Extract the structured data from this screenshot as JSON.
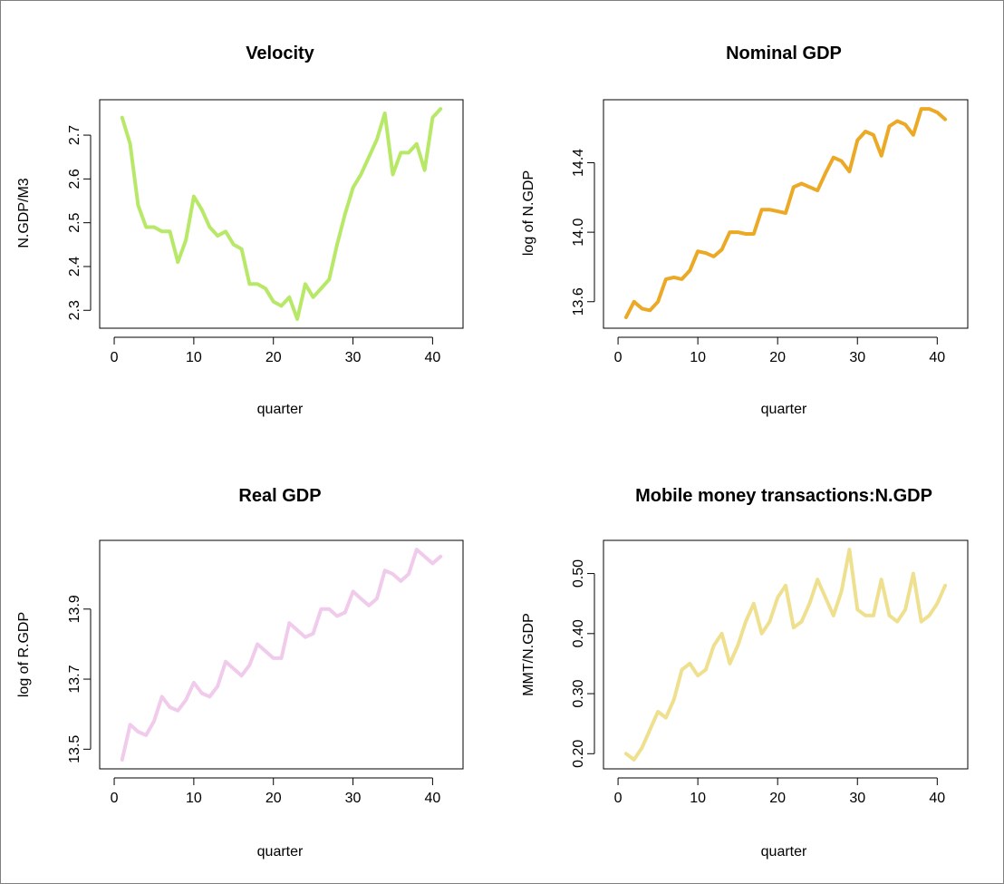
{
  "chart_data": [
    {
      "type": "line",
      "title": "Velocity",
      "xlabel": "quarter",
      "ylabel": "N.GDP/M3",
      "color": "#b7e868",
      "xlim": [
        0,
        42
      ],
      "ylim": [
        2.28,
        2.76
      ],
      "xticks": [
        0,
        10,
        20,
        30,
        40
      ],
      "yticks": [
        2.3,
        2.4,
        2.5,
        2.6,
        2.7
      ],
      "ytick_labels": [
        "2.3",
        "2.4",
        "2.5",
        "2.6",
        "2.7"
      ],
      "x": [
        1,
        2,
        3,
        4,
        5,
        6,
        7,
        8,
        9,
        10,
        11,
        12,
        13,
        14,
        15,
        16,
        17,
        18,
        19,
        20,
        21,
        22,
        23,
        24,
        25,
        26,
        27,
        28,
        29,
        30,
        31,
        32,
        33,
        34,
        35,
        36,
        37,
        38,
        39,
        40,
        41
      ],
      "y": [
        2.74,
        2.68,
        2.54,
        2.49,
        2.49,
        2.48,
        2.48,
        2.41,
        2.46,
        2.56,
        2.53,
        2.49,
        2.47,
        2.48,
        2.45,
        2.44,
        2.36,
        2.36,
        2.35,
        2.32,
        2.31,
        2.33,
        2.28,
        2.36,
        2.33,
        2.35,
        2.37,
        2.45,
        2.52,
        2.58,
        2.61,
        2.65,
        2.69,
        2.75,
        2.61,
        2.66,
        2.66,
        2.68,
        2.62,
        2.74,
        2.76
      ]
    },
    {
      "type": "line",
      "title": "Nominal GDP",
      "xlabel": "quarter",
      "ylabel": "log of N.GDP",
      "color": "#eba926",
      "xlim": [
        0,
        42
      ],
      "ylim": [
        13.5,
        14.71
      ],
      "xticks": [
        0,
        10,
        20,
        30,
        40
      ],
      "yticks": [
        13.6,
        14.0,
        14.4
      ],
      "ytick_labels": [
        "13.6",
        "14.0",
        "14.4"
      ],
      "x": [
        1,
        2,
        3,
        4,
        5,
        6,
        7,
        8,
        9,
        10,
        11,
        12,
        13,
        14,
        15,
        16,
        17,
        18,
        19,
        20,
        21,
        22,
        23,
        24,
        25,
        26,
        27,
        28,
        29,
        30,
        31,
        32,
        33,
        34,
        35,
        36,
        37,
        38,
        39,
        40,
        41
      ],
      "y": [
        13.51,
        13.6,
        13.56,
        13.55,
        13.6,
        13.73,
        13.74,
        13.73,
        13.78,
        13.89,
        13.88,
        13.86,
        13.9,
        14.0,
        14.0,
        13.99,
        13.99,
        14.13,
        14.13,
        14.12,
        14.11,
        14.26,
        14.28,
        14.26,
        14.24,
        14.34,
        14.43,
        14.41,
        14.35,
        14.53,
        14.58,
        14.56,
        14.44,
        14.61,
        14.64,
        14.62,
        14.56,
        14.71,
        14.71,
        14.69,
        14.65
      ]
    },
    {
      "type": "line",
      "title": "Real GDP",
      "xlabel": "quarter",
      "ylabel": "log of R.GDP",
      "color": "#f0cbeb",
      "xlim": [
        0,
        42
      ],
      "ylim": [
        13.47,
        14.07
      ],
      "xticks": [
        0,
        10,
        20,
        30,
        40
      ],
      "yticks": [
        13.5,
        13.7,
        13.9
      ],
      "ytick_labels": [
        "13.5",
        "13.7",
        "13.9"
      ],
      "x": [
        1,
        2,
        3,
        4,
        5,
        6,
        7,
        8,
        9,
        10,
        11,
        12,
        13,
        14,
        15,
        16,
        17,
        18,
        19,
        20,
        21,
        22,
        23,
        24,
        25,
        26,
        27,
        28,
        29,
        30,
        31,
        32,
        33,
        34,
        35,
        36,
        37,
        38,
        39,
        40,
        41
      ],
      "y": [
        13.47,
        13.57,
        13.55,
        13.54,
        13.58,
        13.65,
        13.62,
        13.61,
        13.64,
        13.69,
        13.66,
        13.65,
        13.68,
        13.75,
        13.73,
        13.71,
        13.74,
        13.8,
        13.78,
        13.76,
        13.76,
        13.86,
        13.84,
        13.82,
        13.83,
        13.9,
        13.9,
        13.88,
        13.89,
        13.95,
        13.93,
        13.91,
        13.93,
        14.01,
        14.0,
        13.98,
        14.0,
        14.07,
        14.05,
        14.03,
        14.05
      ]
    },
    {
      "type": "line",
      "title": "Mobile money transactions:N.GDP",
      "xlabel": "quarter",
      "ylabel": "MMT/N.GDP",
      "color": "#efe08f",
      "xlim": [
        0,
        42
      ],
      "ylim": [
        0.19,
        0.54
      ],
      "xticks": [
        0,
        10,
        20,
        30,
        40
      ],
      "yticks": [
        0.2,
        0.3,
        0.4,
        0.5
      ],
      "ytick_labels": [
        "0.20",
        "0.30",
        "0.40",
        "0.50"
      ],
      "x": [
        1,
        2,
        3,
        4,
        5,
        6,
        7,
        8,
        9,
        10,
        11,
        12,
        13,
        14,
        15,
        16,
        17,
        18,
        19,
        20,
        21,
        22,
        23,
        24,
        25,
        26,
        27,
        28,
        29,
        30,
        31,
        32,
        33,
        34,
        35,
        36,
        37,
        38,
        39,
        40,
        41
      ],
      "y": [
        0.2,
        0.19,
        0.21,
        0.24,
        0.27,
        0.26,
        0.29,
        0.34,
        0.35,
        0.33,
        0.34,
        0.38,
        0.4,
        0.35,
        0.38,
        0.42,
        0.45,
        0.4,
        0.42,
        0.46,
        0.48,
        0.41,
        0.42,
        0.45,
        0.49,
        0.46,
        0.43,
        0.47,
        0.54,
        0.44,
        0.43,
        0.43,
        0.49,
        0.43,
        0.42,
        0.44,
        0.5,
        0.42,
        0.43,
        0.45,
        0.48
      ]
    }
  ]
}
